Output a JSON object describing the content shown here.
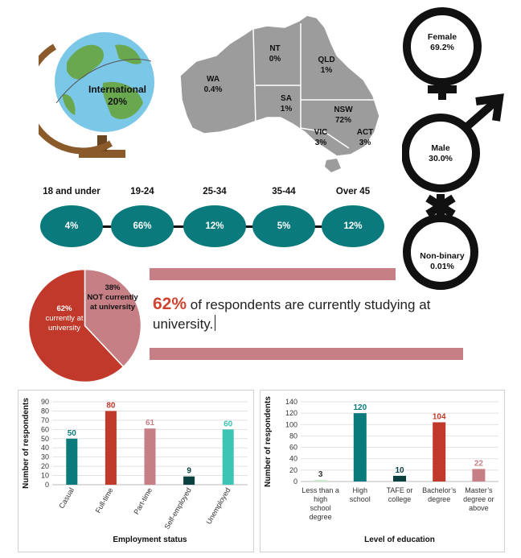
{
  "international": {
    "label": "International",
    "value": "20%"
  },
  "australia": {
    "states": [
      {
        "name": "WA",
        "value": "0.4%"
      },
      {
        "name": "NT",
        "value": "0%"
      },
      {
        "name": "QLD",
        "value": "1%"
      },
      {
        "name": "SA",
        "value": "1%"
      },
      {
        "name": "NSW",
        "value": "72%"
      },
      {
        "name": "VIC",
        "value": "3%"
      },
      {
        "name": "ACT",
        "value": "3%"
      }
    ]
  },
  "gender": [
    {
      "label": "Female",
      "value": "69.2%"
    },
    {
      "label": "Male",
      "value": "30.0%"
    },
    {
      "label": "Non-binary",
      "value": "0.01%"
    }
  ],
  "age": {
    "groups": [
      {
        "label": "18 and under",
        "value": "4%"
      },
      {
        "label": "19-24",
        "value": "66%"
      },
      {
        "label": "25-34",
        "value": "12%"
      },
      {
        "label": "35-44",
        "value": "5%"
      },
      {
        "label": "Over 45",
        "value": "12%"
      }
    ]
  },
  "study": {
    "pct": "62%",
    "text": " of respondents are currently studying at university.",
    "pie": {
      "slices": [
        {
          "value": 62,
          "pct": "62%",
          "label": "currently at university",
          "color": "#c0392b"
        },
        {
          "value": 38,
          "pct": "38%",
          "label": "NOT currently at university",
          "color": "#c77f86"
        }
      ]
    }
  },
  "chart_data": [
    {
      "type": "bar",
      "title": "",
      "xlabel": "Employment status",
      "ylabel": "Number of respondents",
      "ylim": [
        0,
        90
      ],
      "yticks": [
        0,
        10,
        20,
        30,
        40,
        50,
        60,
        70,
        80,
        90
      ],
      "categories": [
        "Casual",
        "Full-time",
        "Part-time",
        "Self-employed",
        "Unemployed"
      ],
      "values": [
        50,
        80,
        61,
        9,
        60
      ],
      "colors": [
        "#0b7a7c",
        "#c0392b",
        "#c77f86",
        "#0a4040",
        "#3cc4b4"
      ]
    },
    {
      "type": "bar",
      "title": "",
      "xlabel": "Level of education",
      "ylabel": "Number of respondents",
      "ylim": [
        0,
        140
      ],
      "yticks": [
        0,
        20,
        40,
        60,
        80,
        100,
        120,
        140
      ],
      "categories": [
        "Less than a high school degree",
        "High school",
        "TAFE or college",
        "Bachelor’s degree",
        "Master’s degree or above"
      ],
      "values": [
        3,
        120,
        10,
        104,
        22
      ],
      "colors": [
        "#cde9d0",
        "#0b7a7c",
        "#0a4040",
        "#c0392b",
        "#c77f86"
      ]
    }
  ]
}
